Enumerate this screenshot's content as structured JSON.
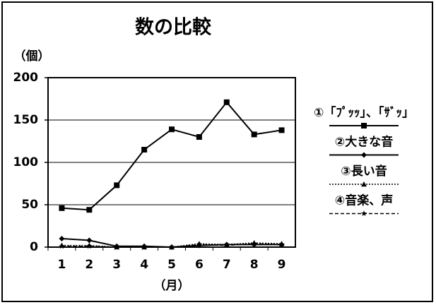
{
  "chart_data": {
    "type": "line",
    "title": "数の比較",
    "y_label": "（個）",
    "x_label": "（月）",
    "categories": [
      "1",
      "2",
      "3",
      "4",
      "5",
      "6",
      "7",
      "8",
      "9"
    ],
    "ylim": [
      0,
      200
    ],
    "yticks": [
      0,
      50,
      100,
      150,
      200
    ],
    "grid": true,
    "series": [
      {
        "name": "①「ﾌﾟｯｯ」、「ｻﾞｯ」",
        "color": "#000000",
        "line_style": "solid",
        "marker": "square",
        "values": [
          46,
          44,
          73,
          115,
          139,
          130,
          171,
          133,
          138
        ]
      },
      {
        "name": "②大きな音",
        "color": "#000000",
        "line_style": "solid",
        "marker": "diamond",
        "values": [
          10,
          8,
          1,
          1,
          0,
          2,
          3,
          3,
          3
        ]
      },
      {
        "name": "③長い音",
        "color": "#000000",
        "line_style": "dotted",
        "marker": "triangle",
        "values": [
          2,
          2,
          0,
          0,
          0,
          4,
          3,
          5,
          4
        ]
      },
      {
        "name": "④音楽、声",
        "color": "#000000",
        "line_style": "dashed",
        "marker": "star",
        "values": [
          1,
          1,
          0,
          0,
          0,
          3,
          2,
          4,
          3
        ]
      }
    ]
  }
}
